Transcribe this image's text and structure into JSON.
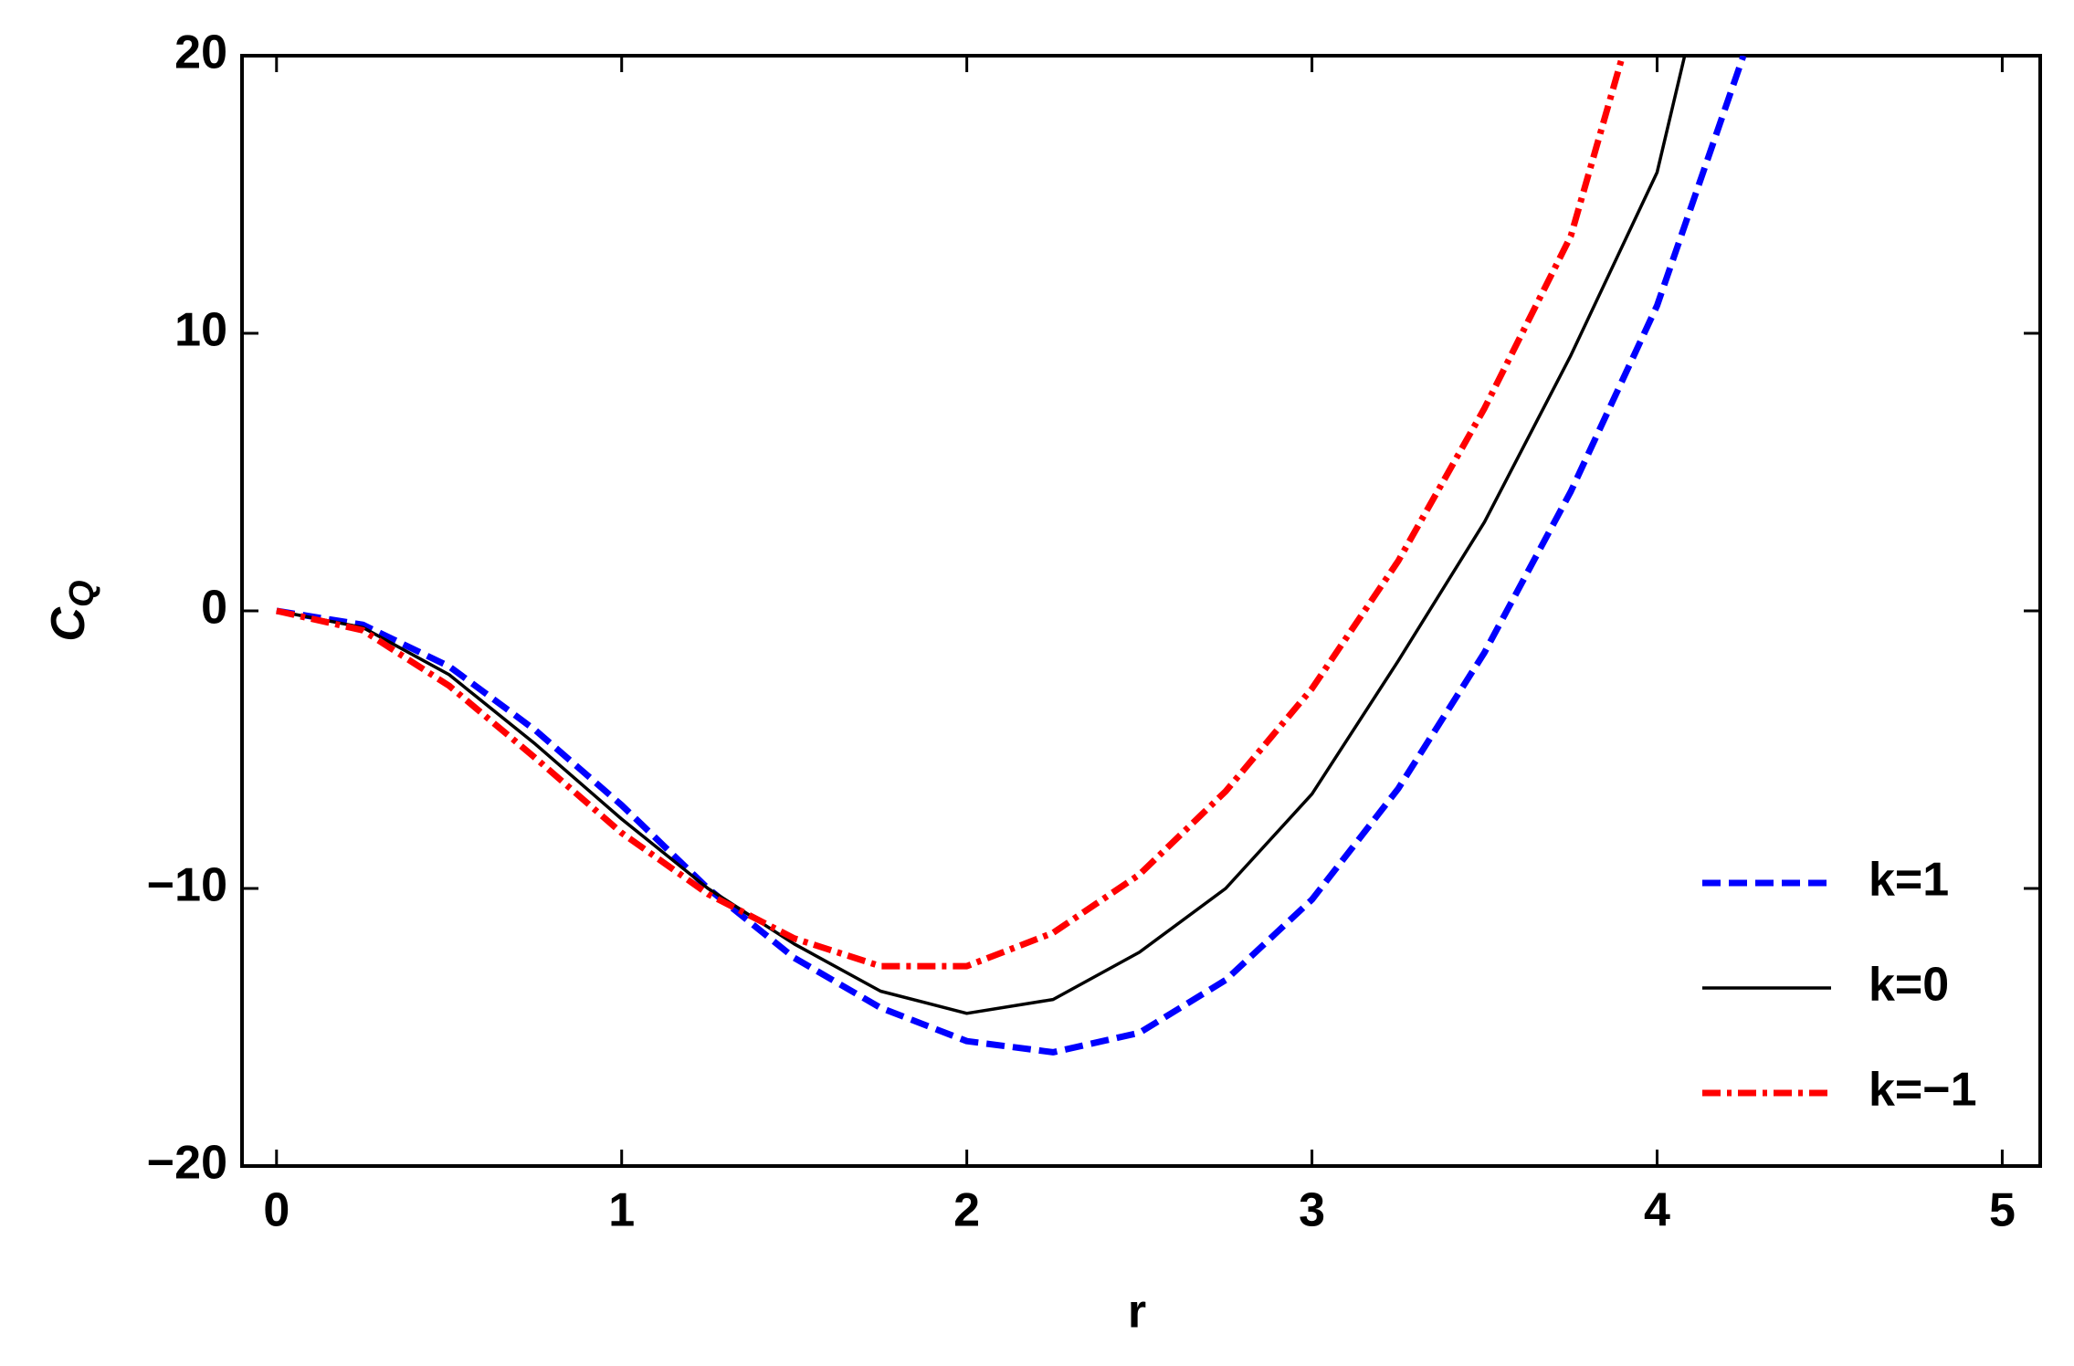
{
  "chart_data": {
    "type": "line",
    "xlabel": "r",
    "ylabel": "C",
    "ylabel_sub": "Q",
    "xlim": [
      -0.1,
      5.11
    ],
    "ylim": [
      -20,
      20
    ],
    "xticks": [
      0,
      1,
      2,
      3,
      4,
      5
    ],
    "yticks": [
      {
        "value": -20,
        "label": "−20"
      },
      {
        "value": -10,
        "label": "−10"
      },
      0,
      10,
      20
    ],
    "legend": "lower right",
    "series": [
      {
        "name": "k=1",
        "color": "#0000ff",
        "style": "dashed",
        "x": [
          0,
          0.25,
          0.5,
          0.75,
          1,
          1.25,
          1.5,
          1.75,
          2,
          2.25,
          2.5,
          2.75,
          3,
          3.25,
          3.5,
          3.75,
          4,
          4.25
        ],
        "values": [
          0,
          -0.5,
          -2,
          -4.3,
          -7,
          -10,
          -12.5,
          -14.3,
          -15.5,
          -15.9,
          -15.2,
          -13.3,
          -10.4,
          -6.4,
          -1.5,
          4.3,
          11,
          20
        ]
      },
      {
        "name": "k=0",
        "color": "#000000",
        "style": "solid",
        "x": [
          0,
          0.25,
          0.5,
          0.75,
          1,
          1.25,
          1.5,
          1.75,
          2,
          2.25,
          2.5,
          2.75,
          3,
          3.25,
          3.5,
          3.75,
          4,
          4.08
        ],
        "values": [
          0,
          -0.6,
          -2.3,
          -4.8,
          -7.5,
          -10,
          -12,
          -13.7,
          -14.5,
          -14,
          -12.3,
          -10,
          -6.6,
          -1.8,
          3.2,
          9.2,
          15.8,
          20
        ]
      },
      {
        "name": "k=−1",
        "color": "#ff0000",
        "style": "dashdot",
        "x": [
          0,
          0.25,
          0.5,
          0.75,
          1,
          1.25,
          1.5,
          1.75,
          2,
          2.25,
          2.5,
          2.75,
          3,
          3.25,
          3.5,
          3.75,
          3.9
        ],
        "values": [
          0,
          -0.7,
          -2.7,
          -5.3,
          -8,
          -10.2,
          -11.8,
          -12.8,
          -12.8,
          -11.6,
          -9.5,
          -6.5,
          -2.8,
          1.8,
          7.3,
          13.5,
          20
        ]
      }
    ]
  }
}
